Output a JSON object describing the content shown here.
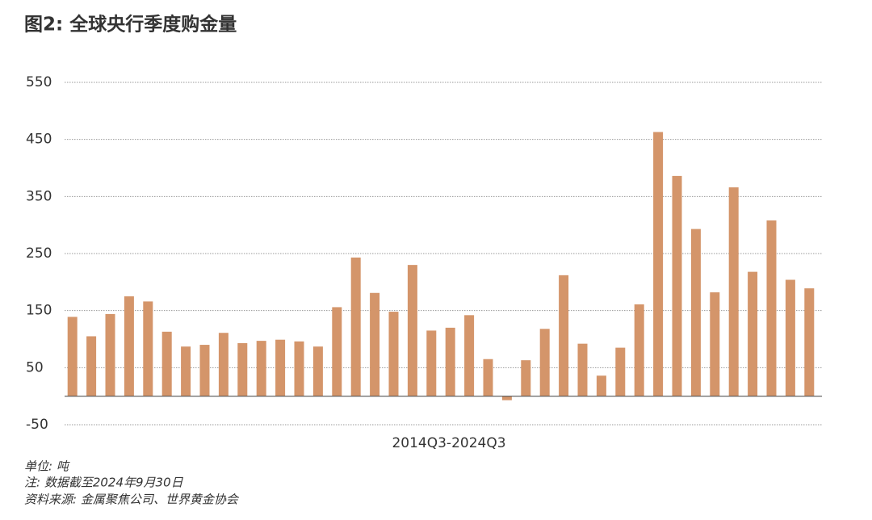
{
  "chart_data": {
    "type": "bar",
    "title": "图2: 全球央行季度购金量",
    "x_label": "2014Q3-2024Q3",
    "notes": [
      "单位: 吨",
      "注: 数据截至2024年9月30日",
      "资料来源: 金属聚焦公司、世界黄金协会"
    ],
    "categories": [
      null,
      null,
      null,
      null,
      null,
      null,
      null,
      null,
      null,
      null,
      null,
      null,
      null,
      null,
      null,
      null,
      null,
      null,
      null,
      null,
      null,
      null,
      null,
      null,
      null,
      null,
      null,
      null,
      null,
      null,
      null,
      null,
      null,
      null,
      null,
      null,
      null,
      null,
      null,
      null
    ],
    "values": [
      139,
      105,
      144,
      175,
      166,
      113,
      87,
      90,
      111,
      93,
      97,
      99,
      96,
      87,
      156,
      243,
      181,
      148,
      230,
      115,
      120,
      142,
      65,
      -7,
      63,
      118,
      212,
      92,
      36,
      85,
      161,
      463,
      386,
      293,
      182,
      366,
      218,
      308,
      204,
      189
    ],
    "color": "#d4956a",
    "ylim": [
      -50,
      550
    ],
    "yticks": [
      -50,
      50,
      150,
      250,
      350,
      450,
      550
    ],
    "grid": true
  }
}
